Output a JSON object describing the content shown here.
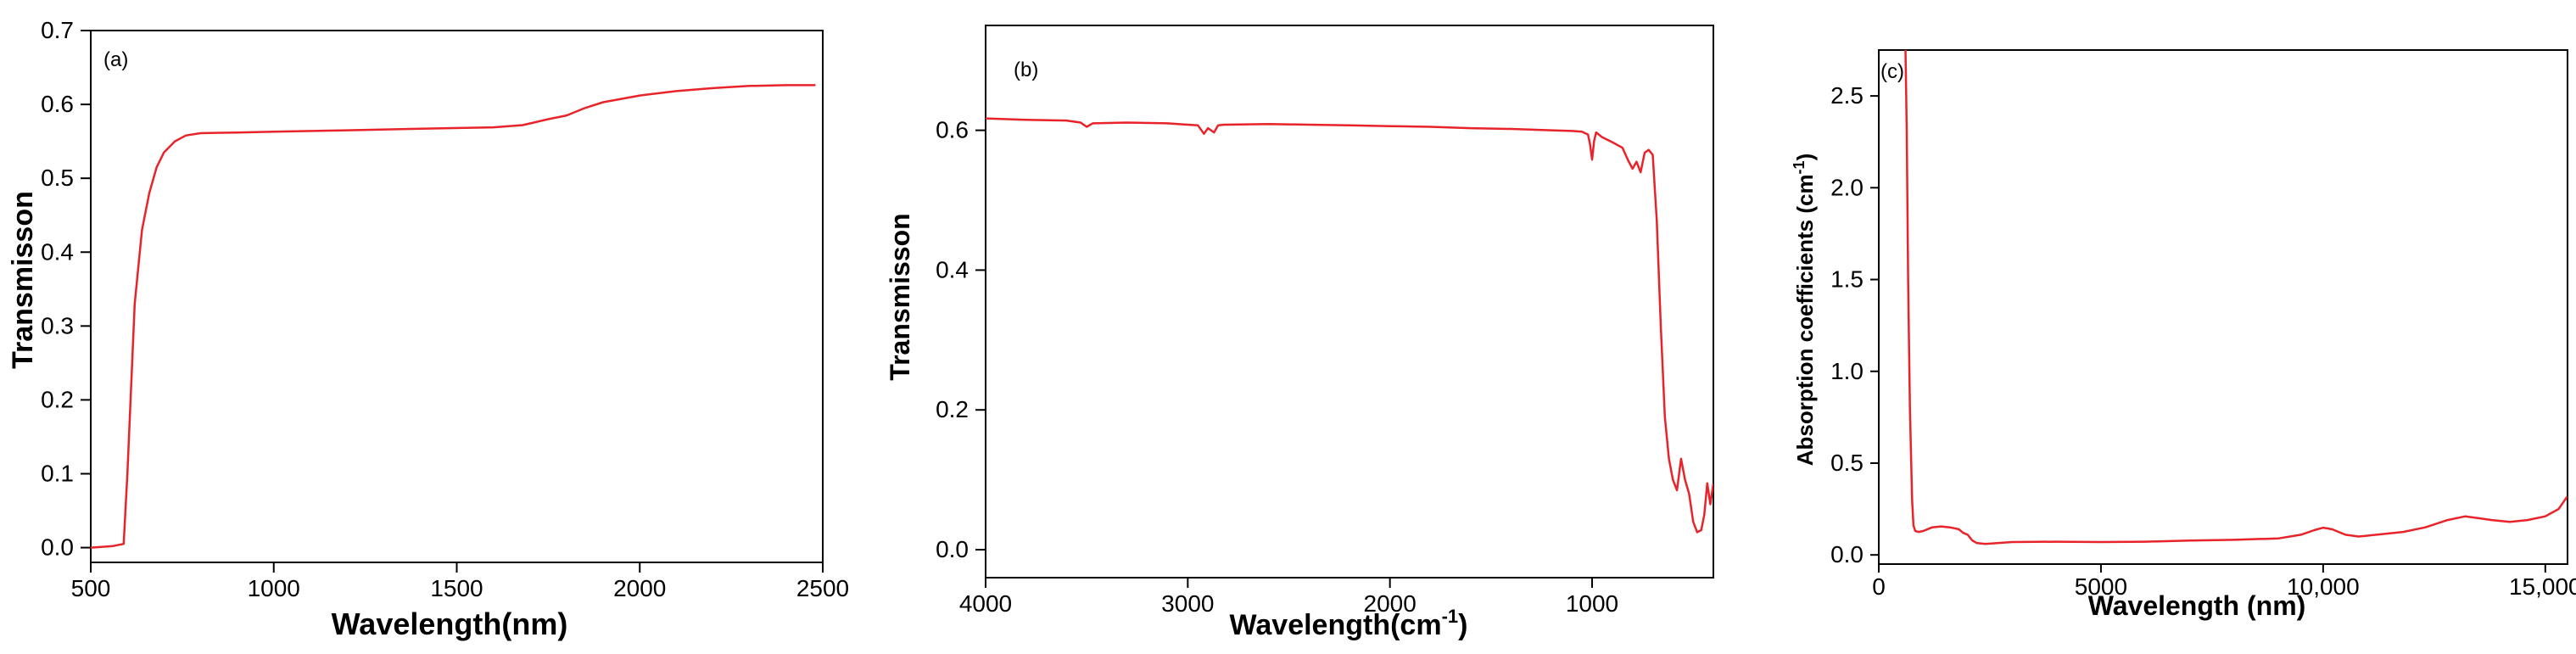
{
  "chart_data": [
    {
      "type": "line",
      "panel_label": "(a)",
      "xlabel": "Wavelength(nm)",
      "ylabel": "Transmisson",
      "xlim": [
        500,
        2500
      ],
      "ylim": [
        -0.02,
        0.7
      ],
      "xticks": [
        500,
        1000,
        1500,
        2000,
        2500
      ],
      "xtick_labels": [
        "500",
        "1000",
        "1500",
        "2000",
        "2500"
      ],
      "yticks": [
        0.0,
        0.1,
        0.2,
        0.3,
        0.4,
        0.5,
        0.6,
        0.7
      ],
      "ytick_labels": [
        "0.0",
        "0.1",
        "0.2",
        "0.3",
        "0.4",
        "0.5",
        "0.6",
        "0.7"
      ],
      "grid": false,
      "series": [
        {
          "name": "Transmission",
          "color": "#e8242a",
          "x": [
            500,
            560,
            590,
            600,
            620,
            640,
            660,
            680,
            700,
            730,
            760,
            800,
            900,
            1000,
            1200,
            1400,
            1600,
            1680,
            1750,
            1800,
            1850,
            1900,
            2000,
            2100,
            2200,
            2300,
            2400,
            2480
          ],
          "y": [
            0.0,
            0.002,
            0.005,
            0.1,
            0.33,
            0.43,
            0.48,
            0.515,
            0.535,
            0.55,
            0.558,
            0.561,
            0.562,
            0.563,
            0.565,
            0.567,
            0.569,
            0.572,
            0.58,
            0.585,
            0.595,
            0.603,
            0.612,
            0.618,
            0.622,
            0.625,
            0.626,
            0.626
          ]
        }
      ]
    },
    {
      "type": "line",
      "panel_label": "(b)",
      "xlabel": "Wavelength(cm",
      "xlabel_superscript": "-1",
      "xlabel_close": ")",
      "ylabel": "Transmisson",
      "xlim": [
        4000,
        400
      ],
      "ylim": [
        -0.04,
        0.75
      ],
      "xticks": [
        4000,
        3000,
        2000,
        1000
      ],
      "xtick_labels": [
        "4000",
        "3000",
        "2000",
        "1000"
      ],
      "yticks": [
        0.0,
        0.2,
        0.4,
        0.6
      ],
      "ytick_labels": [
        "0.0",
        "0.2",
        "0.4",
        "0.6"
      ],
      "grid": false,
      "series": [
        {
          "name": "Transmission",
          "color": "#e8242a",
          "x": [
            4000,
            3800,
            3600,
            3530,
            3500,
            3470,
            3300,
            3100,
            2950,
            2920,
            2900,
            2870,
            2850,
            2820,
            2600,
            2400,
            2200,
            2000,
            1800,
            1600,
            1400,
            1200,
            1100,
            1050,
            1020,
            1010,
            1000,
            990,
            980,
            950,
            900,
            850,
            820,
            800,
            780,
            760,
            740,
            720,
            700,
            680,
            660,
            640,
            620,
            600,
            580,
            560,
            540,
            520,
            500,
            480,
            460,
            445,
            430,
            415,
            400
          ],
          "y": [
            0.617,
            0.615,
            0.614,
            0.611,
            0.605,
            0.61,
            0.611,
            0.61,
            0.607,
            0.595,
            0.603,
            0.597,
            0.607,
            0.608,
            0.609,
            0.608,
            0.607,
            0.606,
            0.605,
            0.603,
            0.602,
            0.6,
            0.599,
            0.598,
            0.594,
            0.58,
            0.558,
            0.585,
            0.597,
            0.59,
            0.583,
            0.575,
            0.556,
            0.545,
            0.555,
            0.54,
            0.568,
            0.572,
            0.565,
            0.47,
            0.32,
            0.19,
            0.13,
            0.1,
            0.085,
            0.13,
            0.1,
            0.08,
            0.04,
            0.025,
            0.028,
            0.05,
            0.095,
            0.065,
            0.095
          ]
        }
      ]
    },
    {
      "type": "line",
      "panel_label": "(c)",
      "xlabel": "Wavelength (nm)",
      "ylabel": "Absorption coefficients (cm",
      "ylabel_superscript": "-1",
      "ylabel_close": ")",
      "xlim": [
        0,
        15500
      ],
      "ylim": [
        -0.05,
        2.75
      ],
      "xticks": [
        0,
        5000,
        10000,
        15000
      ],
      "xtick_labels": [
        "0",
        "5000",
        "10,000",
        "15,000"
      ],
      "yticks": [
        0.0,
        0.5,
        1.0,
        1.5,
        2.0,
        2.5
      ],
      "ytick_labels": [
        "0.0",
        "0.5",
        "1.0",
        "1.5",
        "2.0",
        "2.5"
      ],
      "grid": false,
      "series": [
        {
          "name": "Absorption",
          "color": "#e8242a",
          "x": [
            600,
            630,
            660,
            700,
            750,
            780,
            820,
            900,
            1000,
            1200,
            1400,
            1600,
            1800,
            1900,
            2000,
            2100,
            2200,
            2400,
            2700,
            3000,
            4000,
            5000,
            6000,
            7000,
            8000,
            9000,
            9500,
            9800,
            10000,
            10200,
            10500,
            10800,
            11200,
            11800,
            12300,
            12800,
            13200,
            13500,
            13800,
            14200,
            14600,
            15000,
            15300,
            15500
          ],
          "y": [
            2.78,
            2.3,
            1.5,
            0.8,
            0.3,
            0.16,
            0.13,
            0.125,
            0.13,
            0.15,
            0.155,
            0.15,
            0.14,
            0.12,
            0.11,
            0.08,
            0.065,
            0.06,
            0.065,
            0.07,
            0.072,
            0.07,
            0.072,
            0.078,
            0.082,
            0.09,
            0.11,
            0.135,
            0.148,
            0.14,
            0.11,
            0.1,
            0.11,
            0.125,
            0.15,
            0.19,
            0.21,
            0.2,
            0.19,
            0.18,
            0.19,
            0.21,
            0.25,
            0.32
          ]
        }
      ]
    }
  ]
}
